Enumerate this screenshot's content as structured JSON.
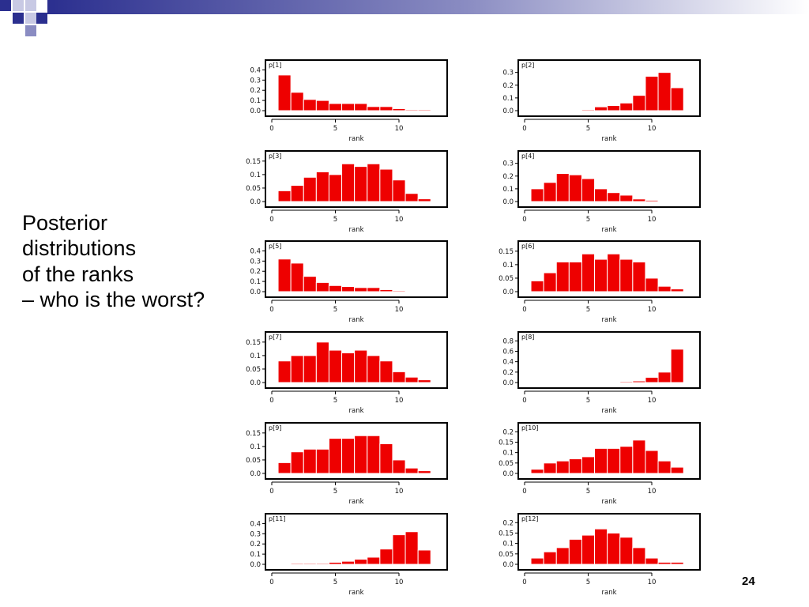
{
  "slide": {
    "title_lines": [
      "Posterior",
      "distributions",
      "of the ranks",
      "– who is the worst?"
    ],
    "page_number": "24",
    "colors": {
      "bar": "#ee0000",
      "header_band": "#2b2f8f",
      "frame": "#000000"
    }
  },
  "chart_data": [
    {
      "type": "bar",
      "label": "p[1]",
      "xlabel": "rank",
      "xlim": [
        0,
        13
      ],
      "x": [
        1,
        2,
        3,
        4,
        5,
        6,
        7,
        8,
        9,
        10,
        11,
        12
      ],
      "values": [
        0.35,
        0.18,
        0.11,
        0.1,
        0.07,
        0.07,
        0.07,
        0.04,
        0.04,
        0.02,
        0.01,
        0.01
      ],
      "ylim": [
        0,
        0.45
      ],
      "yticks": [
        "0.0",
        "0.1",
        "0.2",
        "0.3",
        "0.4"
      ],
      "xticks": [
        "0",
        "5",
        "10"
      ]
    },
    {
      "type": "bar",
      "label": "p[2]",
      "xlabel": "rank",
      "xlim": [
        0,
        13
      ],
      "x": [
        1,
        2,
        3,
        4,
        5,
        6,
        7,
        8,
        9,
        10,
        11,
        12
      ],
      "values": [
        0.003,
        0.002,
        0.005,
        0.006,
        0.008,
        0.03,
        0.04,
        0.06,
        0.12,
        0.27,
        0.3,
        0.18
      ],
      "ylim": [
        0,
        0.36
      ],
      "yticks": [
        "0.0",
        "0.1",
        "0.2",
        "0.3"
      ],
      "xticks": [
        "0",
        "5",
        "10"
      ]
    },
    {
      "type": "bar",
      "label": "p[3]",
      "xlabel": "rank",
      "xlim": [
        0,
        13
      ],
      "x": [
        1,
        2,
        3,
        4,
        5,
        6,
        7,
        8,
        9,
        10,
        11,
        12
      ],
      "values": [
        0.04,
        0.06,
        0.09,
        0.11,
        0.1,
        0.14,
        0.13,
        0.14,
        0.12,
        0.08,
        0.03,
        0.01
      ],
      "ylim": [
        0,
        0.17
      ],
      "yticks": [
        "0.0",
        "0.05",
        "0.1",
        "0.15"
      ],
      "xticks": [
        "0",
        "5",
        "10"
      ]
    },
    {
      "type": "bar",
      "label": "p[4]",
      "xlabel": "rank",
      "xlim": [
        0,
        13
      ],
      "x": [
        1,
        2,
        3,
        4,
        5,
        6,
        7,
        8,
        9,
        10,
        11,
        12
      ],
      "values": [
        0.1,
        0.15,
        0.22,
        0.21,
        0.18,
        0.1,
        0.07,
        0.05,
        0.02,
        0.01,
        0,
        0
      ],
      "ylim": [
        0,
        0.36
      ],
      "yticks": [
        "0.0",
        "0.1",
        "0.2",
        "0.3"
      ],
      "xticks": [
        "0",
        "5",
        "10"
      ]
    },
    {
      "type": "bar",
      "label": "p[5]",
      "xlabel": "rank",
      "xlim": [
        0,
        13
      ],
      "x": [
        1,
        2,
        3,
        4,
        5,
        6,
        7,
        8,
        9,
        10,
        11,
        12
      ],
      "values": [
        0.32,
        0.28,
        0.15,
        0.09,
        0.06,
        0.05,
        0.04,
        0.04,
        0.02,
        0.01,
        0,
        0
      ],
      "ylim": [
        0,
        0.45
      ],
      "yticks": [
        "0.0",
        "0.1",
        "0.2",
        "0.3",
        "0.4"
      ],
      "xticks": [
        "0",
        "5",
        "10"
      ]
    },
    {
      "type": "bar",
      "label": "p[6]",
      "xlabel": "rank",
      "xlim": [
        0,
        13
      ],
      "x": [
        1,
        2,
        3,
        4,
        5,
        6,
        7,
        8,
        9,
        10,
        11,
        12
      ],
      "values": [
        0.04,
        0.07,
        0.11,
        0.11,
        0.14,
        0.12,
        0.14,
        0.12,
        0.11,
        0.05,
        0.02,
        0.01
      ],
      "ylim": [
        0,
        0.17
      ],
      "yticks": [
        "0.0",
        "0.05",
        "0.1",
        "0.15"
      ],
      "xticks": [
        "0",
        "5",
        "10"
      ]
    },
    {
      "type": "bar",
      "label": "p[7]",
      "xlabel": "rank",
      "xlim": [
        0,
        13
      ],
      "x": [
        1,
        2,
        3,
        4,
        5,
        6,
        7,
        8,
        9,
        10,
        11,
        12
      ],
      "values": [
        0.08,
        0.1,
        0.1,
        0.15,
        0.12,
        0.11,
        0.12,
        0.1,
        0.08,
        0.04,
        0.02,
        0.01
      ],
      "ylim": [
        0,
        0.17
      ],
      "yticks": [
        "0.0",
        "0.05",
        "0.1",
        "0.15"
      ],
      "xticks": [
        "0",
        "5",
        "10"
      ]
    },
    {
      "type": "bar",
      "label": "p[8]",
      "xlabel": "rank",
      "xlim": [
        0,
        13
      ],
      "x": [
        1,
        2,
        3,
        4,
        5,
        6,
        7,
        8,
        9,
        10,
        11,
        12
      ],
      "values": [
        0,
        0,
        0,
        0,
        0.002,
        0.005,
        0.008,
        0.02,
        0.03,
        0.1,
        0.2,
        0.64
      ],
      "ylim": [
        0,
        0.88
      ],
      "yticks": [
        "0.0",
        "0.2",
        "0.4",
        "0.6",
        "0.8"
      ],
      "xticks": [
        "0",
        "5",
        "10"
      ]
    },
    {
      "type": "bar",
      "label": "p[9]",
      "xlabel": "rank",
      "xlim": [
        0,
        13
      ],
      "x": [
        1,
        2,
        3,
        4,
        5,
        6,
        7,
        8,
        9,
        10,
        11,
        12
      ],
      "values": [
        0.04,
        0.08,
        0.09,
        0.09,
        0.13,
        0.13,
        0.14,
        0.14,
        0.11,
        0.05,
        0.02,
        0.01
      ],
      "ylim": [
        0,
        0.17
      ],
      "yticks": [
        "0.0",
        "0.05",
        "0.1",
        "0.15"
      ],
      "xticks": [
        "0",
        "5",
        "10"
      ]
    },
    {
      "type": "bar",
      "label": "p[10]",
      "xlabel": "rank",
      "xlim": [
        0,
        13
      ],
      "x": [
        1,
        2,
        3,
        4,
        5,
        6,
        7,
        8,
        9,
        10,
        11,
        12
      ],
      "values": [
        0.02,
        0.05,
        0.06,
        0.07,
        0.08,
        0.12,
        0.12,
        0.13,
        0.16,
        0.11,
        0.06,
        0.03
      ],
      "ylim": [
        0,
        0.22
      ],
      "yticks": [
        "0.0",
        "0.05",
        "0.1",
        "0.15",
        "0.2"
      ],
      "xticks": [
        "0",
        "5",
        "10"
      ]
    },
    {
      "type": "bar",
      "label": "p[11]",
      "xlabel": "rank",
      "xlim": [
        0,
        13
      ],
      "x": [
        1,
        2,
        3,
        4,
        5,
        6,
        7,
        8,
        9,
        10,
        11,
        12
      ],
      "values": [
        0.005,
        0.01,
        0.01,
        0.01,
        0.02,
        0.03,
        0.05,
        0.07,
        0.15,
        0.29,
        0.32,
        0.14
      ],
      "ylim": [
        0,
        0.45
      ],
      "yticks": [
        "0.0",
        "0.1",
        "0.2",
        "0.3",
        "0.4"
      ],
      "xticks": [
        "0",
        "5",
        "10"
      ]
    },
    {
      "type": "bar",
      "label": "p[12]",
      "xlabel": "rank",
      "xlim": [
        0,
        13
      ],
      "x": [
        1,
        2,
        3,
        4,
        5,
        6,
        7,
        8,
        9,
        10,
        11,
        12
      ],
      "values": [
        0.03,
        0.06,
        0.08,
        0.12,
        0.14,
        0.17,
        0.15,
        0.13,
        0.08,
        0.03,
        0.01,
        0.01
      ],
      "ylim": [
        0,
        0.22
      ],
      "yticks": [
        "0.0",
        "0.05",
        "0.1",
        "0.15",
        "0.2"
      ],
      "xticks": [
        "0",
        "5",
        "10"
      ]
    }
  ]
}
